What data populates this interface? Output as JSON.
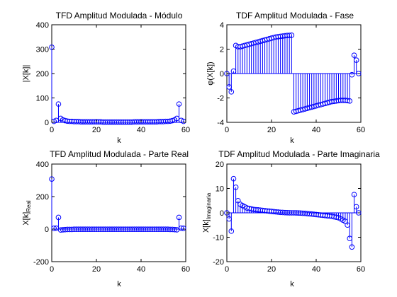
{
  "figure": {
    "background": "#ffffff",
    "axes_background": "#ffffff",
    "mark_color": "#0000ff",
    "axis_color": "#000000"
  },
  "chart_data": [
    {
      "type": "stem",
      "title": "TFD Amplitud Modulada - Módulo",
      "xlabel": "k",
      "ylabel": "|X[k]|",
      "xlim": [
        0,
        60
      ],
      "ylim": [
        0,
        400
      ],
      "xticks": [
        "0",
        "20",
        "40",
        "60"
      ],
      "yticks": [
        "0",
        "100",
        "200",
        "300",
        "400"
      ],
      "x": [
        0,
        1,
        2,
        3,
        4,
        5,
        6,
        7,
        8,
        9,
        10,
        11,
        12,
        13,
        14,
        15,
        16,
        17,
        18,
        19,
        20,
        21,
        22,
        23,
        24,
        25,
        26,
        27,
        28,
        29,
        30,
        31,
        32,
        33,
        34,
        35,
        36,
        37,
        38,
        39,
        40,
        41,
        42,
        43,
        44,
        45,
        46,
        47,
        48,
        49,
        50,
        51,
        52,
        53,
        54,
        55,
        56,
        57,
        58,
        59
      ],
      "values": [
        308,
        4,
        8,
        75,
        16,
        10,
        7,
        5,
        4,
        4,
        3,
        3,
        3,
        2,
        2,
        2,
        2,
        2,
        2,
        2,
        2,
        2,
        2,
        1,
        1,
        1,
        1,
        1,
        1,
        1,
        1,
        1,
        1,
        1,
        1,
        1,
        1,
        2,
        2,
        2,
        2,
        2,
        2,
        2,
        2,
        2,
        2,
        2,
        3,
        3,
        3,
        4,
        4,
        5,
        7,
        10,
        16,
        75,
        8,
        4
      ]
    },
    {
      "type": "stem",
      "title": "TDF Amplitud Modulada - Fase",
      "xlabel": "k",
      "ylabel": "φ(X[k])",
      "xlim": [
        0,
        60
      ],
      "ylim": [
        -4,
        4
      ],
      "xticks": [
        "0",
        "20",
        "40",
        "60"
      ],
      "yticks": [
        "-4",
        "-2",
        "0",
        "2",
        "4"
      ],
      "x": [
        0,
        1,
        2,
        3,
        4,
        5,
        6,
        7,
        8,
        9,
        10,
        11,
        12,
        13,
        14,
        15,
        16,
        17,
        18,
        19,
        20,
        21,
        22,
        23,
        24,
        25,
        26,
        27,
        28,
        29,
        30,
        31,
        32,
        33,
        34,
        35,
        36,
        37,
        38,
        39,
        40,
        41,
        42,
        43,
        44,
        45,
        46,
        47,
        48,
        49,
        50,
        51,
        52,
        53,
        54,
        55,
        56,
        57,
        58,
        59
      ],
      "values": [
        0,
        -1.1,
        -1.5,
        0.2,
        2.3,
        2.2,
        2.2,
        2.25,
        2.3,
        2.35,
        2.4,
        2.45,
        2.5,
        2.55,
        2.6,
        2.65,
        2.7,
        2.75,
        2.8,
        2.85,
        2.9,
        2.95,
        3.0,
        3.02,
        3.05,
        3.07,
        3.1,
        3.12,
        3.13,
        3.14,
        -3.14,
        -3.1,
        -3.05,
        -3.0,
        -2.95,
        -2.9,
        -2.85,
        -2.8,
        -2.75,
        -2.7,
        -2.65,
        -2.6,
        -2.55,
        -2.5,
        -2.45,
        -2.4,
        -2.35,
        -2.3,
        -2.28,
        -2.25,
        -2.22,
        -2.2,
        -2.2,
        -2.2,
        -2.22,
        -2.25,
        -0.1,
        1.5,
        1.1,
        0
      ]
    },
    {
      "type": "stem",
      "title": "TFD Amplitud Modulada - Parte Real",
      "xlabel": "k",
      "ylabel": "X[k]",
      "ylabel_sub": "Real",
      "xlim": [
        0,
        60
      ],
      "ylim": [
        -200,
        400
      ],
      "xticks": [
        "0",
        "20",
        "40",
        "60"
      ],
      "yticks": [
        "-200",
        "0",
        "200",
        "400"
      ],
      "x": [
        0,
        1,
        2,
        3,
        4,
        5,
        6,
        7,
        8,
        9,
        10,
        11,
        12,
        13,
        14,
        15,
        16,
        17,
        18,
        19,
        20,
        21,
        22,
        23,
        24,
        25,
        26,
        27,
        28,
        29,
        30,
        31,
        32,
        33,
        34,
        35,
        36,
        37,
        38,
        39,
        40,
        41,
        42,
        43,
        44,
        45,
        46,
        47,
        48,
        49,
        50,
        51,
        52,
        53,
        54,
        55,
        56,
        57,
        58,
        59
      ],
      "values": [
        308,
        5,
        6,
        72,
        -5,
        -4,
        -3,
        -2,
        -2,
        -2,
        -1,
        -1,
        -1,
        -1,
        -1,
        -1,
        -1,
        -1,
        -1,
        -1,
        -1,
        -1,
        -1,
        -1,
        -1,
        -1,
        -1,
        -1,
        -1,
        -1,
        -1,
        -1,
        -1,
        -1,
        -1,
        -1,
        -1,
        -1,
        -1,
        -1,
        -1,
        -1,
        -1,
        -1,
        -1,
        -1,
        -1,
        -1,
        -1,
        -1,
        -1,
        -1,
        -1,
        -2,
        -2,
        -3,
        -4,
        72,
        6,
        5
      ]
    },
    {
      "type": "stem",
      "title": "TDF Amplitud Modulada - Parte Imaginaria",
      "xlabel": "k",
      "ylabel": "X[k]",
      "ylabel_sub": "Imaginaria",
      "xlim": [
        0,
        60
      ],
      "ylim": [
        -20,
        20
      ],
      "xticks": [
        "0",
        "20",
        "40",
        "60"
      ],
      "yticks": [
        "-20",
        "-10",
        "0",
        "10",
        "20"
      ],
      "x": [
        0,
        1,
        2,
        3,
        4,
        5,
        6,
        7,
        8,
        9,
        10,
        11,
        12,
        13,
        14,
        15,
        16,
        17,
        18,
        19,
        20,
        21,
        22,
        23,
        24,
        25,
        26,
        27,
        28,
        29,
        30,
        31,
        32,
        33,
        34,
        35,
        36,
        37,
        38,
        39,
        40,
        41,
        42,
        43,
        44,
        45,
        46,
        47,
        48,
        49,
        50,
        51,
        52,
        53,
        54,
        55,
        56,
        57,
        58,
        59
      ],
      "values": [
        0,
        -2.5,
        -7.5,
        14,
        10.5,
        5,
        3.5,
        3,
        2.5,
        2,
        1.8,
        1.6,
        1.4,
        1.3,
        1.2,
        1.1,
        1,
        0.9,
        0.8,
        0.7,
        0.6,
        0.5,
        0.4,
        0.3,
        0.2,
        0.15,
        0.1,
        0.05,
        0.02,
        0,
        0,
        -0.02,
        -0.05,
        -0.1,
        -0.15,
        -0.2,
        -0.3,
        -0.4,
        -0.5,
        -0.6,
        -0.7,
        -0.8,
        -0.9,
        -1,
        -1.1,
        -1.2,
        -1.3,
        -1.4,
        -1.6,
        -1.8,
        -2,
        -2.5,
        -3,
        -3.5,
        -5,
        -10.5,
        -14,
        7.5,
        2.5,
        0
      ]
    }
  ]
}
